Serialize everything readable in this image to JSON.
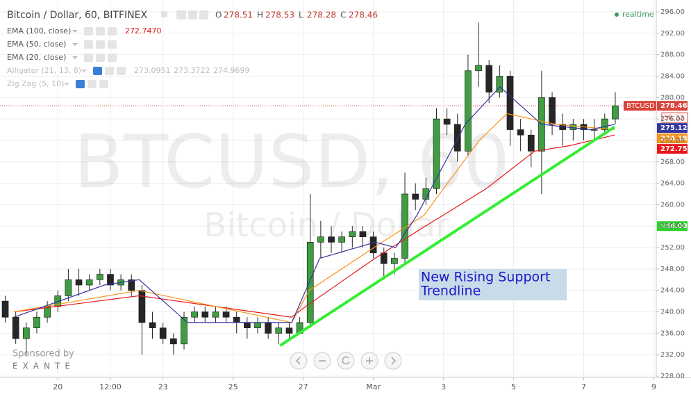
{
  "chart_data": {
    "type": "candlestick",
    "title": "Bitcoin / Dollar, 60, BITFINEX",
    "quote": [
      {
        "key": "O",
        "value": 278.51
      },
      {
        "key": "H",
        "value": 278.53
      },
      {
        "key": "L",
        "value": 278.28
      },
      {
        "key": "C",
        "value": 278.46
      }
    ],
    "status": "realtime",
    "watermark": [
      "BTCUSD, 60",
      "Bitcoin / Dollar"
    ],
    "sponsor": [
      "Sponsored by",
      "EXANTE"
    ],
    "up_color": "#3f9e3f",
    "down_color": "#262626",
    "x": [
      18.5,
      18.8,
      19.1,
      19.4,
      19.7,
      20.0,
      20.3,
      20.6,
      20.9,
      21.2,
      21.5,
      21.8,
      22.1,
      22.4,
      22.7,
      23.0,
      23.3,
      23.6,
      23.9,
      24.2,
      24.5,
      24.8,
      25.1,
      25.4,
      25.7,
      26.0,
      26.3,
      26.6,
      26.9,
      27.2,
      27.5,
      27.8,
      28.1,
      28.4,
      28.7,
      29.0,
      29.3,
      29.6,
      29.9,
      30.2,
      30.5,
      30.8,
      31.1,
      31.4,
      31.7,
      32.0,
      32.3,
      32.6,
      32.9,
      33.2,
      33.5,
      33.8,
      34.1,
      34.4,
      34.7,
      35.0,
      35.3,
      35.6,
      35.9
    ],
    "open": [
      242,
      239,
      235,
      237,
      239,
      241,
      243,
      246,
      245,
      246,
      247,
      245,
      246,
      244,
      238,
      237,
      235,
      234,
      239,
      240,
      239,
      240,
      239,
      238,
      237,
      238,
      236,
      237,
      236,
      238,
      253,
      254,
      253,
      254,
      255,
      254,
      251,
      249,
      250,
      262,
      261,
      263,
      276,
      275,
      270,
      285,
      286,
      281,
      284,
      274,
      273,
      270,
      280,
      275,
      274,
      275,
      274,
      274,
      276
    ],
    "high": [
      243,
      240,
      238,
      240,
      242,
      244,
      248,
      248,
      247,
      248,
      248,
      247,
      247,
      245,
      240,
      238,
      236,
      240,
      241,
      241,
      241,
      241,
      240,
      239,
      239,
      239,
      238,
      238,
      239,
      262,
      257,
      256,
      255,
      256,
      256,
      255,
      252,
      251,
      266,
      264,
      265,
      278,
      278,
      277,
      288,
      294,
      287,
      286,
      285,
      276,
      274,
      285,
      281,
      277,
      276,
      276,
      276,
      277,
      281
    ],
    "low": [
      238,
      234,
      232,
      236,
      238,
      240,
      242,
      243,
      244,
      245,
      244,
      244,
      243,
      232,
      235,
      234,
      232,
      233,
      238,
      238,
      238,
      238,
      236,
      235,
      236,
      235,
      234,
      235,
      236,
      237,
      250,
      251,
      251,
      252,
      252,
      250,
      246,
      247,
      249,
      259,
      260,
      262,
      273,
      268,
      269,
      282,
      279,
      280,
      271,
      270,
      267,
      262,
      273,
      271,
      272,
      272,
      272,
      273,
      275
    ],
    "close": [
      239,
      235,
      237,
      239,
      241,
      243,
      246,
      245,
      246,
      247,
      245,
      246,
      244,
      238,
      237,
      235,
      234,
      239,
      240,
      239,
      240,
      239,
      238,
      237,
      238,
      236,
      237,
      236,
      238,
      253,
      254,
      253,
      254,
      255,
      254,
      251,
      249,
      250,
      262,
      261,
      263,
      276,
      275,
      270,
      285,
      286,
      281,
      284,
      274,
      273,
      270,
      280,
      275,
      274,
      275,
      274,
      274,
      276,
      278.46
    ],
    "series": [
      {
        "name": "EMA (100, close)",
        "color": "#e8161a",
        "last": {
          "value": 272.747,
          "label": "272.7470"
        },
        "x": [
          18.75,
          22.32,
          26.67,
          27.07,
          29.05,
          30.24,
          32.22,
          33.6,
          34.59,
          35.88
        ],
        "values": [
          240,
          243,
          239,
          241,
          250,
          255,
          263,
          270,
          271,
          273
        ]
      },
      {
        "name": "EMA (50, close)",
        "color": "#f7931a",
        "last": {
          "value": 274.1837
        },
        "x": [
          18.75,
          22.32,
          26.67,
          27.17,
          29.25,
          30.44,
          32.02,
          32.81,
          34.2,
          35.88
        ],
        "values": [
          240,
          244,
          238,
          244,
          253,
          258,
          272,
          277,
          275,
          274
        ]
      },
      {
        "name": "EMA (20, close)",
        "color": "#3434a0",
        "last": {
          "value": 275.1169
        },
        "x": [
          18.75,
          21.33,
          22.32,
          23.7,
          26.67,
          27.47,
          29.05,
          29.64,
          30.24,
          31.62,
          32.61,
          33.8,
          35.19,
          35.88
        ],
        "values": [
          239,
          245,
          246,
          238,
          238,
          250,
          253,
          252,
          258,
          275,
          282,
          275,
          274,
          275
        ]
      }
    ],
    "hidden_indicators": [
      {
        "name": "Alligator (21, 13, 8)",
        "values": [
          273.0951,
          273.3722,
          274.9699
        ]
      },
      {
        "name": "Zig Zag (5, 10)"
      }
    ],
    "trendline": {
      "color": "#33ee33",
      "x": [
        26.34,
        35.88
      ],
      "values": [
        233.7,
        274.5
      ]
    },
    "annotation": [
      "New Rising Support",
      "Trendline"
    ],
    "last_price": {
      "name": "BTCUSD",
      "value": 278.46,
      "color": "#d9443a",
      "countdown": "58:33"
    },
    "axis_tags": [
      {
        "value": 275.12,
        "color": "#3434a0"
      },
      {
        "value": 274.18,
        "color": "#f7931a"
      },
      {
        "value": 272.75,
        "color": "#e8161a"
      },
      {
        "value": {
          "value": 256,
          "label": "256.00"
        },
        "color": "#2ed12e"
      }
    ],
    "xlim": [
      18.45,
      37.07
    ],
    "xticks": [
      20,
      {
        "value": 21.5,
        "label": "12:00"
      },
      23,
      25,
      27,
      {
        "value": 29,
        "label": "Mar"
      },
      {
        "value": 31,
        "label": "3"
      },
      {
        "value": 33,
        "label": "5"
      },
      {
        "value": 35,
        "label": "7"
      },
      {
        "value": 37,
        "label": "9"
      }
    ],
    "ylim": [
      227.2,
      297
    ],
    "yticks": [
      {
        "value": 228,
        "label": "228.00"
      },
      {
        "value": 232,
        "label": "232.00"
      },
      {
        "value": 236,
        "label": "236.00"
      },
      {
        "value": 240,
        "label": "240.00"
      },
      {
        "value": 244,
        "label": "244.00"
      },
      {
        "value": 248,
        "label": "248.00"
      },
      {
        "value": 252,
        "label": "252.00"
      },
      {
        "value": 256,
        "label": "256.00"
      },
      {
        "value": 260,
        "label": "260.00"
      },
      {
        "value": 264,
        "label": "264.00"
      },
      {
        "value": 268,
        "label": "268.00"
      },
      {
        "value": 272,
        "label": "272.00"
      },
      {
        "value": 276,
        "label": "276.00"
      },
      {
        "value": 280,
        "label": "280.00"
      },
      {
        "value": 284,
        "label": "284.00"
      },
      {
        "value": 288,
        "label": "288.00"
      },
      {
        "value": 292,
        "label": "292.00"
      },
      {
        "value": 296,
        "label": "296.00"
      }
    ],
    "grid": true
  }
}
